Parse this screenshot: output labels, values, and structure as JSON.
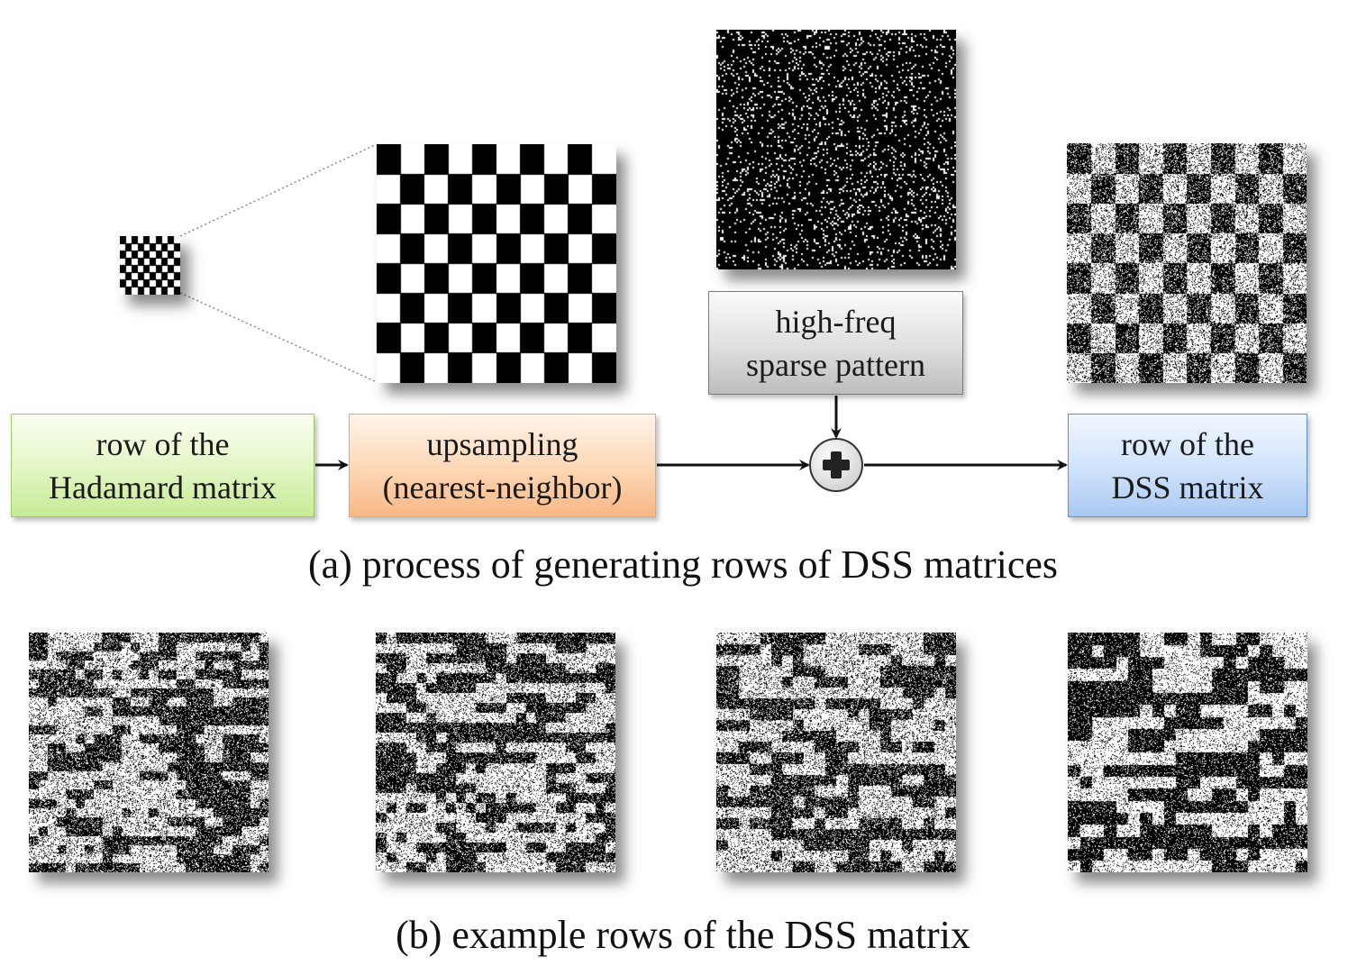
{
  "boxes": {
    "hadamard": {
      "line1": "row of the",
      "line2": "Hadamard matrix",
      "color": "#c6eb94"
    },
    "upsampling": {
      "line1": "upsampling",
      "line2": "(nearest-neighbor)",
      "color": "#f8b884"
    },
    "sparse": {
      "line1": "high-freq",
      "line2": "sparse pattern",
      "color": "#bdbdbd"
    },
    "dss": {
      "line1": "row of the",
      "line2": "DSS matrix",
      "color": "#a9c9f3"
    }
  },
  "operator_icon": "plus-circle-icon",
  "captions": {
    "a": "(a) process of generating rows of DSS matrices",
    "b": "(b) example rows of the DSS matrix"
  }
}
